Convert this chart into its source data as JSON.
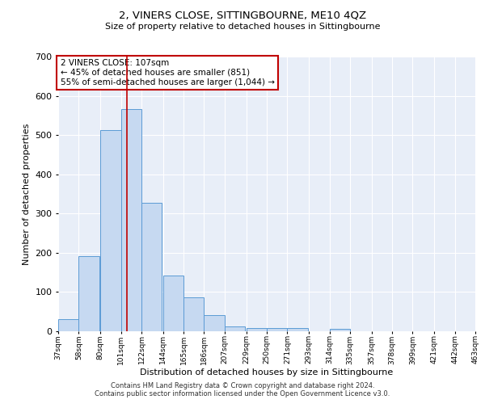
{
  "title": "2, VINERS CLOSE, SITTINGBOURNE, ME10 4QZ",
  "subtitle": "Size of property relative to detached houses in Sittingbourne",
  "xlabel": "Distribution of detached houses by size in Sittingbourne",
  "ylabel": "Number of detached properties",
  "bar_color": "#c6d9f1",
  "bar_edge_color": "#5b9bd5",
  "background_color": "#e8eef8",
  "grid_color": "white",
  "vline_x": 107,
  "vline_color": "#c00000",
  "annotation_text": "2 VINERS CLOSE: 107sqm\n← 45% of detached houses are smaller (851)\n55% of semi-detached houses are larger (1,044) →",
  "annotation_box_color": "white",
  "annotation_box_edge": "#c00000",
  "bins_left": [
    37,
    58,
    80,
    101,
    122,
    144,
    165,
    186,
    207,
    229,
    250,
    271,
    293,
    314,
    335,
    357,
    378,
    399,
    421,
    442
  ],
  "bin_width": 21,
  "bin_labels": [
    "37sqm",
    "58sqm",
    "80sqm",
    "101sqm",
    "122sqm",
    "144sqm",
    "165sqm",
    "186sqm",
    "207sqm",
    "229sqm",
    "250sqm",
    "271sqm",
    "293sqm",
    "314sqm",
    "335sqm",
    "357sqm",
    "378sqm",
    "399sqm",
    "421sqm",
    "442sqm",
    "463sqm"
  ],
  "heights": [
    30,
    192,
    513,
    567,
    328,
    143,
    86,
    41,
    12,
    9,
    9,
    9,
    0,
    7,
    0,
    0,
    0,
    0,
    0,
    0
  ],
  "ylim": [
    0,
    700
  ],
  "yticks": [
    0,
    100,
    200,
    300,
    400,
    500,
    600,
    700
  ],
  "footer1": "Contains HM Land Registry data © Crown copyright and database right 2024.",
  "footer2": "Contains public sector information licensed under the Open Government Licence v3.0."
}
